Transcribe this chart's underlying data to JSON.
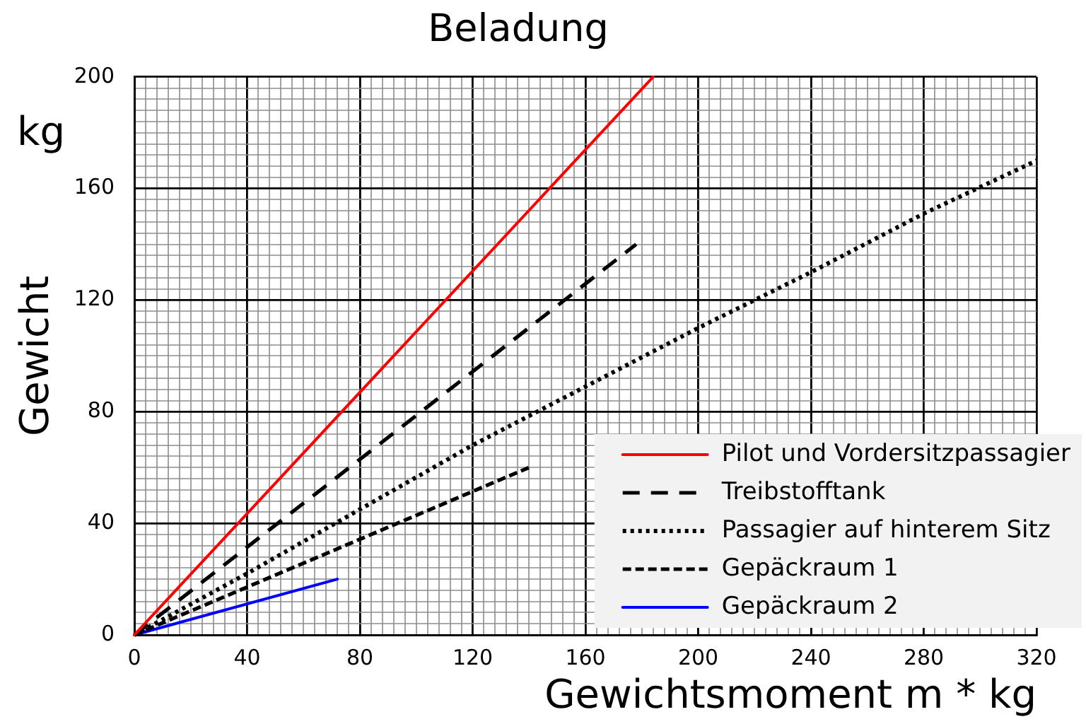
{
  "chart_data": {
    "type": "line",
    "title": "Beladung",
    "xlabel": "Gewichtsmoment m * kg",
    "ylabel": "Gewicht",
    "annotations": [
      "kg"
    ],
    "xlim": [
      0,
      320
    ],
    "ylim": [
      0,
      200
    ],
    "xticks": [
      0,
      {
        "value": 4,
        "label": null
      },
      {
        "value": 8,
        "label": null
      },
      {
        "value": 12,
        "label": null
      },
      {
        "value": 16,
        "label": null
      },
      {
        "value": 20,
        "label": null
      },
      {
        "value": 24,
        "label": null
      },
      {
        "value": 28,
        "label": null
      },
      {
        "value": 32,
        "label": null
      },
      {
        "value": 36,
        "label": null
      },
      40,
      {
        "value": 44,
        "label": null
      },
      {
        "value": 48,
        "label": null
      },
      {
        "value": 52,
        "label": null
      },
      {
        "value": 56,
        "label": null
      },
      {
        "value": 60,
        "label": null
      },
      {
        "value": 64,
        "label": null
      },
      {
        "value": 68,
        "label": null
      },
      {
        "value": 72,
        "label": null
      },
      {
        "value": 76,
        "label": null
      },
      80,
      {
        "value": 84,
        "label": null
      },
      {
        "value": 88,
        "label": null
      },
      {
        "value": 92,
        "label": null
      },
      {
        "value": 96,
        "label": null
      },
      {
        "value": 100,
        "label": null
      },
      {
        "value": 104,
        "label": null
      },
      {
        "value": 108,
        "label": null
      },
      {
        "value": 112,
        "label": null
      },
      {
        "value": 116,
        "label": null
      },
      120,
      {
        "value": 124,
        "label": null
      },
      {
        "value": 128,
        "label": null
      },
      {
        "value": 132,
        "label": null
      },
      {
        "value": 136,
        "label": null
      },
      {
        "value": 140,
        "label": null
      },
      {
        "value": 144,
        "label": null
      },
      {
        "value": 148,
        "label": null
      },
      {
        "value": 152,
        "label": null
      },
      {
        "value": 156,
        "label": null
      },
      160,
      {
        "value": 164,
        "label": null
      },
      {
        "value": 168,
        "label": null
      },
      {
        "value": 172,
        "label": null
      },
      {
        "value": 176,
        "label": null
      },
      {
        "value": 180,
        "label": null
      },
      {
        "value": 184,
        "label": null
      },
      {
        "value": 188,
        "label": null
      },
      {
        "value": 192,
        "label": null
      },
      {
        "value": 196,
        "label": null
      },
      200,
      {
        "value": 204,
        "label": null
      },
      {
        "value": 208,
        "label": null
      },
      {
        "value": 212,
        "label": null
      },
      {
        "value": 216,
        "label": null
      },
      {
        "value": 220,
        "label": null
      },
      {
        "value": 224,
        "label": null
      },
      {
        "value": 228,
        "label": null
      },
      {
        "value": 232,
        "label": null
      },
      {
        "value": 236,
        "label": null
      },
      240,
      {
        "value": 244,
        "label": null
      },
      {
        "value": 248,
        "label": null
      },
      {
        "value": 252,
        "label": null
      },
      {
        "value": 256,
        "label": null
      },
      {
        "value": 260,
        "label": null
      },
      {
        "value": 264,
        "label": null
      },
      {
        "value": 268,
        "label": null
      },
      {
        "value": 272,
        "label": null
      },
      {
        "value": 276,
        "label": null
      },
      280,
      {
        "value": 284,
        "label": null
      },
      {
        "value": 288,
        "label": null
      },
      {
        "value": 292,
        "label": null
      },
      {
        "value": 296,
        "label": null
      },
      {
        "value": 300,
        "label": null
      },
      {
        "value": 304,
        "label": null
      },
      {
        "value": 308,
        "label": null
      },
      {
        "value": 312,
        "label": null
      },
      {
        "value": 316,
        "label": null
      },
      320
    ],
    "yticks": [
      0,
      {
        "value": 4,
        "label": null
      },
      {
        "value": 8,
        "label": null
      },
      {
        "value": 12,
        "label": null
      },
      {
        "value": 16,
        "label": null
      },
      {
        "value": 20,
        "label": null
      },
      {
        "value": 24,
        "label": null
      },
      {
        "value": 28,
        "label": null
      },
      {
        "value": 32,
        "label": null
      },
      {
        "value": 36,
        "label": null
      },
      40,
      {
        "value": 44,
        "label": null
      },
      {
        "value": 48,
        "label": null
      },
      {
        "value": 52,
        "label": null
      },
      {
        "value": 56,
        "label": null
      },
      {
        "value": 60,
        "label": null
      },
      {
        "value": 64,
        "label": null
      },
      {
        "value": 68,
        "label": null
      },
      {
        "value": 72,
        "label": null
      },
      {
        "value": 76,
        "label": null
      },
      80,
      {
        "value": 84,
        "label": null
      },
      {
        "value": 88,
        "label": null
      },
      {
        "value": 92,
        "label": null
      },
      {
        "value": 96,
        "label": null
      },
      {
        "value": 100,
        "label": null
      },
      {
        "value": 104,
        "label": null
      },
      {
        "value": 108,
        "label": null
      },
      {
        "value": 112,
        "label": null
      },
      {
        "value": 116,
        "label": null
      },
      120,
      {
        "value": 124,
        "label": null
      },
      {
        "value": 128,
        "label": null
      },
      {
        "value": 132,
        "label": null
      },
      {
        "value": 136,
        "label": null
      },
      {
        "value": 140,
        "label": null
      },
      {
        "value": 144,
        "label": null
      },
      {
        "value": 148,
        "label": null
      },
      {
        "value": 152,
        "label": null
      },
      {
        "value": 156,
        "label": null
      },
      160,
      {
        "value": 164,
        "label": null
      },
      {
        "value": 168,
        "label": null
      },
      {
        "value": 172,
        "label": null
      },
      {
        "value": 176,
        "label": null
      },
      {
        "value": 180,
        "label": null
      },
      {
        "value": 184,
        "label": null
      },
      {
        "value": 188,
        "label": null
      },
      {
        "value": 192,
        "label": null
      },
      {
        "value": 196,
        "label": null
      },
      200
    ],
    "grid": true,
    "legend": "bottom right",
    "marker": "none",
    "series": [
      {
        "name": "Pilot und Vordersitzpassagier",
        "color": "#ff0000",
        "line_style": "solid",
        "x": [
          0,
          184
        ],
        "values": [
          0,
          200
        ]
      },
      {
        "name": "Treibstofftank",
        "color": "#000000",
        "line_style": "dashed",
        "x": [
          0,
          178
        ],
        "values": [
          0,
          140
        ]
      },
      {
        "name": "Passagier auf hinterem Sitz",
        "color": "#000000",
        "line_style": "dotted",
        "x": [
          0,
          40,
          80,
          120,
          160,
          200,
          240,
          280,
          320
        ],
        "values": [
          0,
          22,
          45,
          68,
          89,
          110,
          130,
          151,
          170
        ]
      },
      {
        "name": "Gepäckraum 1",
        "color": "#000000",
        "line_style": "dashed",
        "x": [
          0,
          140
        ],
        "values": [
          0,
          60
        ]
      },
      {
        "name": "Gepäckraum 2",
        "color": "#0000ff",
        "line_style": "solid",
        "x": [
          0,
          72
        ],
        "values": [
          0,
          20
        ]
      }
    ]
  }
}
